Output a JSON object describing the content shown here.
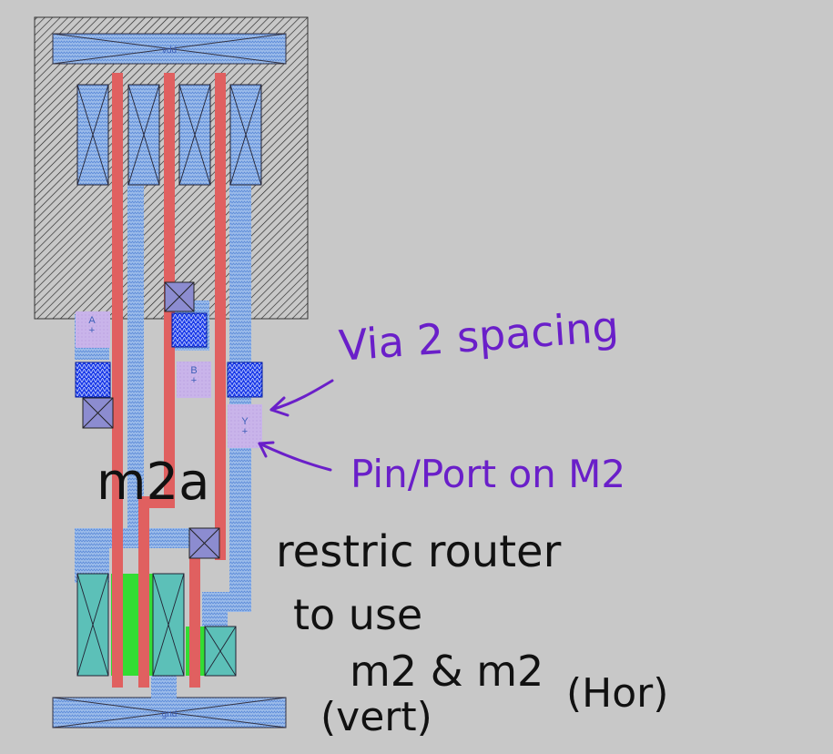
{
  "layout_labels": {
    "vdd": "vdd",
    "gnd": "gnd",
    "pin_a": "A",
    "pin_b": "B",
    "pin_y": "Y"
  },
  "annotations": {
    "via2_spacing": "Via 2  spacing",
    "pin_port": "Pin/Port  on  M2",
    "m2a": "m2a",
    "restric_router": "restric  router",
    "to_use": "to  use",
    "m2_m2": "m2 & m2",
    "vert": "(vert)",
    "hor": "(Hor)"
  },
  "colors": {
    "background": "#c8c8c8",
    "poly": "#e06060",
    "metal1": "#8ab4ec",
    "diff_green": "#33dd33",
    "via_blue": "#1030e0",
    "pin_lavender": "#c9b4ea",
    "annotation_purple": "#6a1fc9"
  }
}
